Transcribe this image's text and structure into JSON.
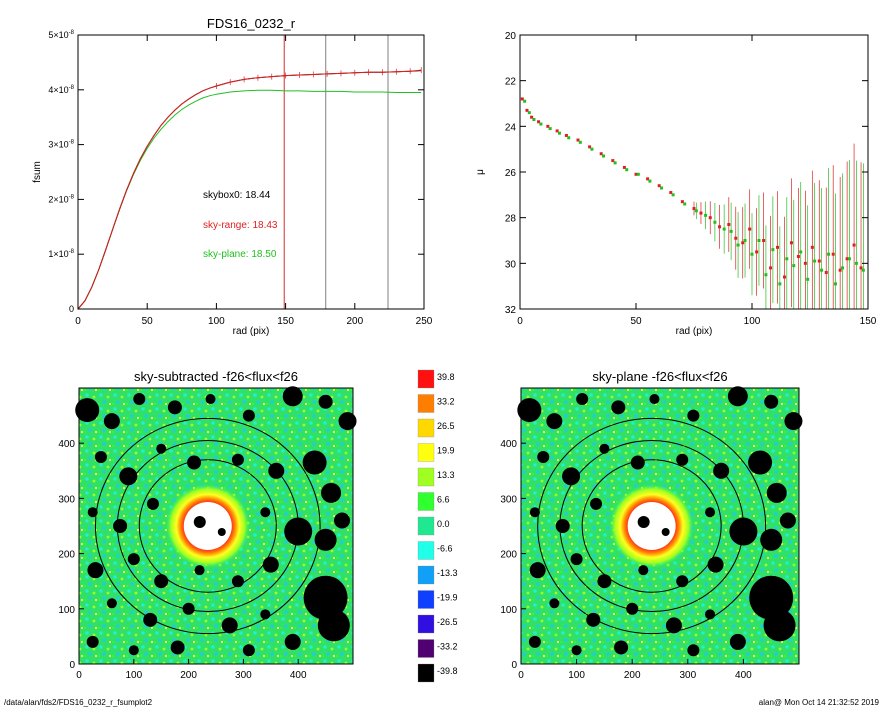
{
  "chart_data": [
    {
      "type": "line",
      "title": "FDS16_0232_r",
      "xlabel": "rad (pix)",
      "ylabel": "fsum",
      "xlim": [
        0,
        250
      ],
      "ylim": [
        0,
        5e-08
      ],
      "x_ticks": [
        "0",
        "50",
        "100",
        "150",
        "200",
        "250"
      ],
      "y_ticks": [
        {
          "value": 0,
          "label": "0"
        },
        {
          "value": 1e-08,
          "label": "1×10^-8"
        },
        {
          "value": 2e-08,
          "label": "2×10^-8"
        },
        {
          "value": 3e-08,
          "label": "3×10^-8"
        },
        {
          "value": 4e-08,
          "label": "4×10^-8"
        },
        {
          "value": 5e-08,
          "label": "5×10^-8"
        }
      ],
      "vertical_lines": [
        {
          "x": 149,
          "color": "#d03030"
        },
        {
          "x": 179,
          "color": "#808080"
        },
        {
          "x": 224,
          "color": "#808080"
        }
      ],
      "annotations": [
        {
          "text": "skybox0: 18.44",
          "color": "#000000"
        },
        {
          "text": "sky-range: 18.43",
          "color": "#e02020"
        },
        {
          "text": "sky-plane: 18.50",
          "color": "#20c020"
        }
      ],
      "series": [
        {
          "color": "#000000",
          "x": [
            0,
            5,
            10,
            15,
            20,
            25,
            30,
            35,
            40,
            45,
            50,
            55,
            60,
            65,
            70,
            75,
            80,
            85,
            90,
            95,
            100,
            110,
            120,
            130,
            140,
            150,
            160,
            170,
            180,
            190,
            200,
            210,
            220,
            230,
            240,
            248
          ],
          "values": [
            0,
            1.5e-09,
            4e-09,
            7.2e-09,
            1.08e-08,
            1.45e-08,
            1.82e-08,
            2.16e-08,
            2.47e-08,
            2.74e-08,
            2.97e-08,
            3.17e-08,
            3.35e-08,
            3.5e-08,
            3.63e-08,
            3.74e-08,
            3.83e-08,
            3.91e-08,
            3.98e-08,
            4.03e-08,
            4.07e-08,
            4.14e-08,
            4.19e-08,
            4.22e-08,
            4.24e-08,
            4.26e-08,
            4.27e-08,
            4.28e-08,
            4.29e-08,
            4.3e-08,
            4.31e-08,
            4.32e-08,
            4.32e-08,
            4.33e-08,
            4.34e-08,
            4.35e-08
          ]
        },
        {
          "color": "#e02020",
          "x": [
            0,
            5,
            10,
            15,
            20,
            25,
            30,
            35,
            40,
            45,
            50,
            55,
            60,
            65,
            70,
            75,
            80,
            85,
            90,
            95,
            100,
            110,
            120,
            130,
            140,
            150,
            160,
            170,
            180,
            190,
            200,
            210,
            220,
            230,
            240,
            248
          ],
          "values": [
            0,
            1.5e-09,
            4e-09,
            7.2e-09,
            1.08e-08,
            1.45e-08,
            1.82e-08,
            2.16e-08,
            2.47e-08,
            2.74e-08,
            2.97e-08,
            3.17e-08,
            3.35e-08,
            3.5e-08,
            3.63e-08,
            3.74e-08,
            3.83e-08,
            3.91e-08,
            3.98e-08,
            4.03e-08,
            4.07e-08,
            4.14e-08,
            4.19e-08,
            4.22e-08,
            4.24e-08,
            4.26e-08,
            4.27e-08,
            4.28e-08,
            4.29e-08,
            4.3e-08,
            4.31e-08,
            4.32e-08,
            4.32e-08,
            4.33e-08,
            4.34e-08,
            4.36e-08
          ]
        },
        {
          "color": "#20c020",
          "x": [
            0,
            5,
            10,
            15,
            20,
            25,
            30,
            35,
            40,
            45,
            50,
            55,
            60,
            65,
            70,
            75,
            80,
            85,
            90,
            95,
            100,
            110,
            120,
            130,
            140,
            150,
            160,
            170,
            180,
            190,
            200,
            210,
            220,
            230,
            240,
            248
          ],
          "values": [
            0,
            1.5e-09,
            4e-09,
            7.2e-09,
            1.08e-08,
            1.45e-08,
            1.81e-08,
            2.15e-08,
            2.45e-08,
            2.71e-08,
            2.93e-08,
            3.12e-08,
            3.28e-08,
            3.42e-08,
            3.54e-08,
            3.64e-08,
            3.72e-08,
            3.79e-08,
            3.85e-08,
            3.89e-08,
            3.92e-08,
            3.96e-08,
            3.98e-08,
            3.99e-08,
            3.99e-08,
            3.98e-08,
            3.98e-08,
            3.97e-08,
            3.97e-08,
            3.97e-08,
            3.96e-08,
            3.96e-08,
            3.96e-08,
            3.95e-08,
            3.95e-08,
            3.95e-08
          ]
        }
      ]
    },
    {
      "type": "scatter",
      "xlabel": "rad (pix)",
      "ylabel": "μ",
      "xlim": [
        0,
        150
      ],
      "ylim": [
        32,
        20
      ],
      "x_ticks": [
        "0",
        "50",
        "100",
        "150"
      ],
      "y_ticks": [
        "20",
        "22",
        "24",
        "26",
        "28",
        "30",
        "32"
      ],
      "series": [
        {
          "color": "#e02020",
          "x": [
            1,
            3,
            5,
            8,
            12,
            16,
            20,
            25,
            30,
            35,
            40,
            45,
            50,
            55,
            60,
            65,
            70,
            75,
            78,
            82,
            86,
            90,
            93,
            96,
            99,
            102,
            105,
            108,
            111,
            114,
            117,
            120,
            123,
            126,
            129,
            132,
            135,
            138,
            141,
            144,
            147
          ],
          "values": [
            22.8,
            23.3,
            23.6,
            23.8,
            24.0,
            24.2,
            24.4,
            24.6,
            24.9,
            25.2,
            25.5,
            25.8,
            26.1,
            26.3,
            26.6,
            26.9,
            27.3,
            27.6,
            27.8,
            28.0,
            28.4,
            28.3,
            28.9,
            29.1,
            28.5,
            29.5,
            29.0,
            30.2,
            29.3,
            30.6,
            29.1,
            29.7,
            30.0,
            29.3,
            29.9,
            30.4,
            29.6,
            30.3,
            29.8,
            29.2,
            30.2
          ]
        },
        {
          "color": "#20c020",
          "x": [
            2,
            4,
            6,
            9,
            13,
            17,
            21,
            26,
            31,
            36,
            41,
            46,
            51,
            56,
            61,
            66,
            71,
            76,
            80,
            84,
            88,
            91,
            94,
            97,
            100,
            103,
            106,
            109,
            112,
            115,
            118,
            121,
            124,
            127,
            130,
            133,
            136,
            139,
            142,
            145,
            148
          ],
          "values": [
            22.9,
            23.4,
            23.7,
            23.9,
            24.1,
            24.3,
            24.5,
            24.7,
            25.0,
            25.3,
            25.6,
            25.9,
            26.1,
            26.4,
            26.7,
            27.0,
            27.4,
            27.7,
            27.9,
            28.2,
            28.5,
            28.6,
            29.2,
            29.0,
            29.6,
            29.0,
            30.5,
            29.4,
            30.9,
            29.8,
            30.1,
            29.5,
            30.7,
            29.9,
            30.3,
            29.6,
            30.9,
            30.2,
            29.8,
            30.0,
            30.3
          ]
        }
      ]
    },
    {
      "type": "heatmap",
      "title": "sky-subtracted -f26<flux<f26",
      "xlim": [
        0,
        500
      ],
      "ylim": [
        0,
        500
      ],
      "x_ticks": [
        "0",
        "100",
        "200",
        "300",
        "400"
      ],
      "y_ticks": [
        "0",
        "100",
        "200",
        "300",
        "400"
      ]
    },
    {
      "type": "heatmap",
      "title": "sky-plane -f26<flux<f26",
      "xlim": [
        0,
        500
      ],
      "ylim": [
        0,
        500
      ],
      "x_ticks": [
        "0",
        "100",
        "200",
        "300",
        "400"
      ],
      "y_ticks": [
        "0",
        "100",
        "200",
        "300",
        "400"
      ]
    }
  ],
  "colorbar": {
    "levels": [
      {
        "label": "39.8",
        "color": "#ff1010"
      },
      {
        "label": "33.2",
        "color": "#ff7e00"
      },
      {
        "label": "26.5",
        "color": "#ffd800"
      },
      {
        "label": "19.9",
        "color": "#ffff10"
      },
      {
        "label": "13.3",
        "color": "#a0ff20"
      },
      {
        "label": "6.6",
        "color": "#30ff30"
      },
      {
        "label": "0.0",
        "color": "#20e890"
      },
      {
        "label": "-6.6",
        "color": "#20ffe8"
      },
      {
        "label": "-13.3",
        "color": "#10a0f8"
      },
      {
        "label": "-19.9",
        "color": "#1040ff"
      },
      {
        "label": "-26.5",
        "color": "#3010e0"
      },
      {
        "label": "-33.2",
        "color": "#500070"
      },
      {
        "label": "-39.8",
        "color": "#000000"
      }
    ]
  },
  "footer": {
    "left": "/data/alan/fds2/FDS16_0232_r_fsumplot2",
    "right": "alan@  Mon Oct 14 21:32:52 2019"
  }
}
